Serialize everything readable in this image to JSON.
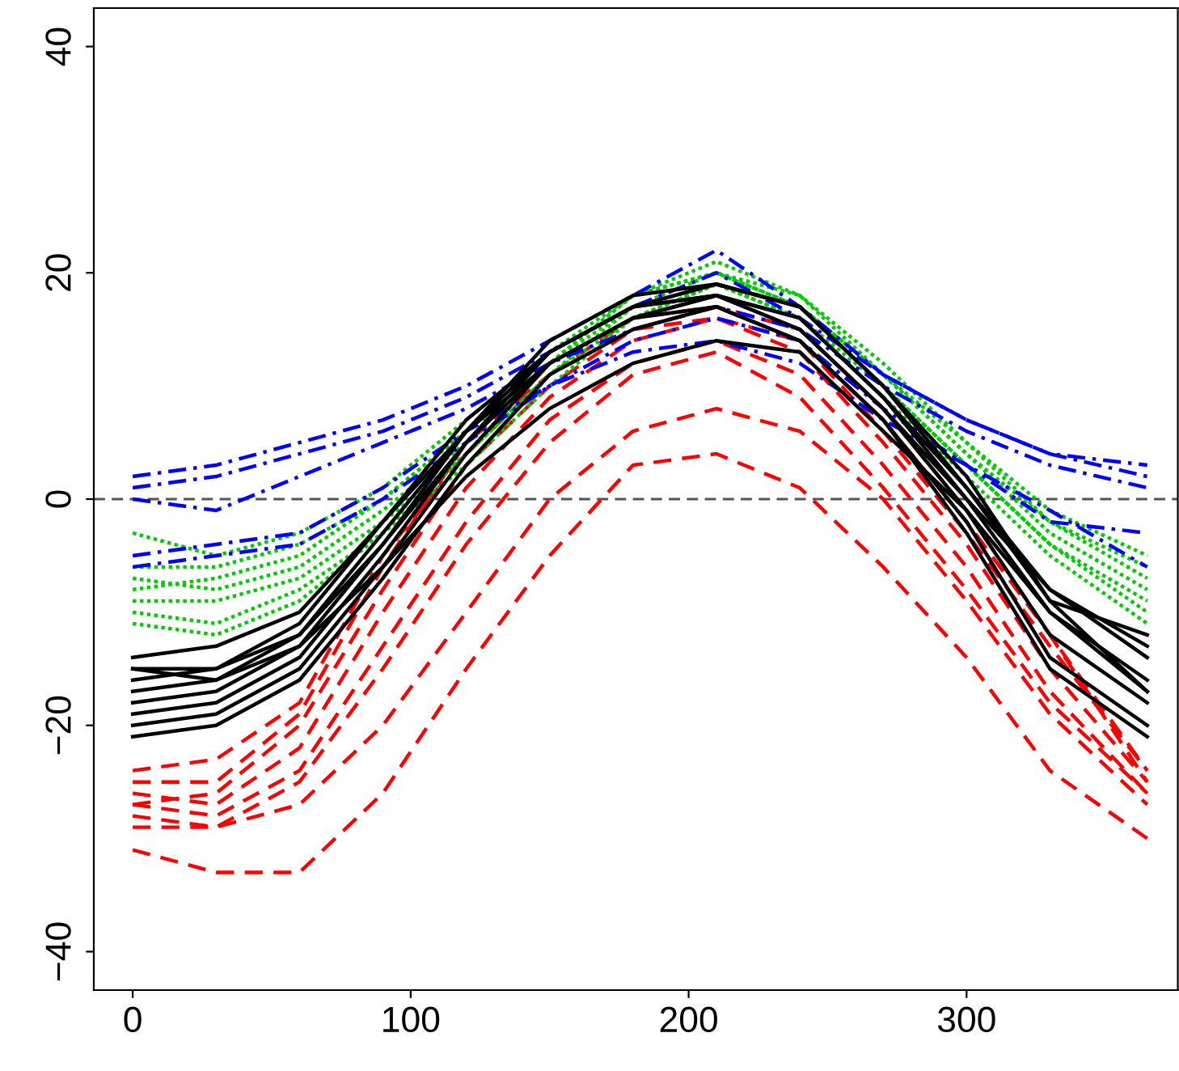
{
  "chart_data": {
    "type": "line",
    "x": [
      0,
      30,
      60,
      90,
      120,
      150,
      180,
      210,
      240,
      270,
      300,
      330,
      365
    ],
    "xlim": [
      -14,
      376
    ],
    "ylim": [
      -43.4,
      43.4
    ],
    "xticks": [
      0,
      100,
      200,
      300
    ],
    "yticks": [
      -40,
      -20,
      0,
      20,
      40
    ],
    "grid": false,
    "marker": "none",
    "ref_lines": [
      {
        "axis": "y",
        "value": 0,
        "color": "#555555",
        "line_style": "dashed"
      }
    ],
    "series": [
      {
        "color": "#ff0000",
        "line_style": "dashed",
        "values": [
          -31,
          -33,
          -33,
          -26,
          -15,
          -5,
          3,
          4,
          1,
          -6,
          -14,
          -24,
          -30
        ]
      },
      {
        "color": "#ff0000",
        "line_style": "dashed",
        "values": [
          -29,
          -29,
          -27,
          -20,
          -10,
          0,
          6,
          8,
          6,
          0,
          -9,
          -19,
          -27
        ]
      },
      {
        "color": "#ff0000",
        "line_style": "dashed",
        "values": [
          -28,
          -29,
          -25,
          -15,
          -4,
          5,
          11,
          13,
          9,
          1,
          -8,
          -18,
          -26
        ]
      },
      {
        "color": "#ff0000",
        "line_style": "dashed",
        "values": [
          -27,
          -28,
          -24,
          -13,
          -2,
          7,
          12,
          14,
          11,
          3,
          -6,
          -17,
          -26
        ]
      },
      {
        "color": "#ff0000",
        "line_style": "dashed",
        "values": [
          -26,
          -27,
          -22,
          -10,
          1,
          9,
          14,
          16,
          13,
          5,
          -4,
          -15,
          -25
        ]
      },
      {
        "color": "#ff0000",
        "line_style": "dashed",
        "values": [
          -27,
          -26,
          -20,
          -8,
          3,
          10,
          15,
          16,
          14,
          6,
          -3,
          -13,
          -24
        ]
      },
      {
        "color": "#ff0000",
        "line_style": "dashed",
        "values": [
          -25,
          -25,
          -19,
          -6,
          5,
          11,
          15,
          17,
          14,
          7,
          -2,
          -12,
          -24
        ]
      },
      {
        "color": "#ff0000",
        "line_style": "dashed",
        "values": [
          -24,
          -23,
          -18,
          -5,
          4,
          11,
          16,
          17,
          15,
          8,
          -1,
          -12,
          -25
        ]
      },
      {
        "color": "#00cd00",
        "line_style": "dotted",
        "values": [
          -3,
          -5,
          -3,
          1,
          7,
          13,
          18,
          21,
          18,
          12,
          5,
          -1,
          -5
        ]
      },
      {
        "color": "#00cd00",
        "line_style": "dotted",
        "values": [
          -6,
          -6,
          -4,
          0,
          6,
          12,
          18,
          20,
          18,
          11,
          4,
          -2,
          -7
        ]
      },
      {
        "color": "#00cd00",
        "line_style": "dotted",
        "values": [
          -7,
          -8,
          -6,
          -1,
          5,
          12,
          17,
          20,
          17,
          11,
          4,
          -3,
          -8
        ]
      },
      {
        "color": "#00cd00",
        "line_style": "dotted",
        "values": [
          -9,
          -9,
          -7,
          -2,
          4,
          11,
          17,
          19,
          17,
          10,
          3,
          -4,
          -9
        ]
      },
      {
        "color": "#00cd00",
        "line_style": "dotted",
        "values": [
          -10,
          -11,
          -8,
          -3,
          4,
          11,
          16,
          19,
          16,
          10,
          3,
          -4,
          -10
        ]
      },
      {
        "color": "#00cd00",
        "line_style": "dotted",
        "values": [
          -11,
          -12,
          -9,
          -3,
          3,
          10,
          16,
          19,
          16,
          9,
          2,
          -5,
          -11
        ]
      },
      {
        "color": "#00cd00",
        "line_style": "dotted",
        "values": [
          -8,
          -7,
          -5,
          0,
          6,
          12,
          18,
          20,
          17,
          11,
          5,
          -2,
          -6
        ]
      },
      {
        "color": "#0000ff",
        "line_style": "dashdot",
        "values": [
          2,
          3,
          5,
          7,
          10,
          14,
          18,
          22,
          17,
          11,
          7,
          4,
          3
        ]
      },
      {
        "color": "#0000ff",
        "line_style": "dashdot",
        "values": [
          1,
          2,
          4,
          6,
          9,
          13,
          17,
          20,
          16,
          11,
          7,
          4,
          2
        ]
      },
      {
        "color": "#0000ff",
        "line_style": "dashdot",
        "values": [
          0,
          -1,
          2,
          5,
          8,
          12,
          15,
          17,
          15,
          10,
          6,
          3,
          1
        ]
      },
      {
        "color": "#0000ff",
        "line_style": "dashdot",
        "values": [
          -5,
          -4,
          -3,
          1,
          6,
          10,
          13,
          14,
          12,
          7,
          3,
          -1,
          -6
        ]
      },
      {
        "color": "#0000ff",
        "line_style": "dashdot",
        "values": [
          -6,
          -5,
          -4,
          0,
          5,
          10,
          14,
          16,
          14,
          8,
          3,
          -2,
          -3
        ]
      },
      {
        "color": "#000000",
        "line_style": "solid",
        "values": [
          -14,
          -13,
          -10,
          -2,
          6,
          12,
          16,
          18,
          15,
          8,
          0,
          -8,
          -13
        ]
      },
      {
        "color": "#000000",
        "line_style": "solid",
        "values": [
          -15,
          -15,
          -11,
          -2,
          7,
          13,
          17,
          19,
          17,
          10,
          1,
          -8,
          -14
        ]
      },
      {
        "color": "#000000",
        "line_style": "solid",
        "values": [
          -16,
          -15,
          -12,
          -3,
          6,
          13,
          17,
          18,
          16,
          9,
          1,
          -9,
          -17
        ]
      },
      {
        "color": "#000000",
        "line_style": "solid",
        "values": [
          -17,
          -16,
          -12,
          -4,
          5,
          12,
          16,
          18,
          16,
          9,
          0,
          -10,
          -17
        ]
      },
      {
        "color": "#000000",
        "line_style": "solid",
        "values": [
          -18,
          -17,
          -13,
          -4,
          6,
          14,
          18,
          19,
          17,
          10,
          2,
          -9,
          -12
        ]
      },
      {
        "color": "#000000",
        "line_style": "solid",
        "values": [
          -19,
          -18,
          -14,
          -5,
          5,
          13,
          17,
          18,
          15,
          8,
          -1,
          -12,
          -18
        ]
      },
      {
        "color": "#000000",
        "line_style": "solid",
        "values": [
          -20,
          -19,
          -15,
          -6,
          4,
          12,
          16,
          17,
          14,
          7,
          -2,
          -14,
          -20
        ]
      },
      {
        "color": "#000000",
        "line_style": "solid",
        "values": [
          -21,
          -20,
          -16,
          -7,
          3,
          11,
          15,
          17,
          14,
          7,
          -3,
          -15,
          -21
        ]
      },
      {
        "color": "#000000",
        "line_style": "solid",
        "values": [
          -15,
          -16,
          -13,
          -6,
          2,
          8,
          12,
          14,
          13,
          6,
          -1,
          -10,
          -16
        ]
      }
    ]
  }
}
